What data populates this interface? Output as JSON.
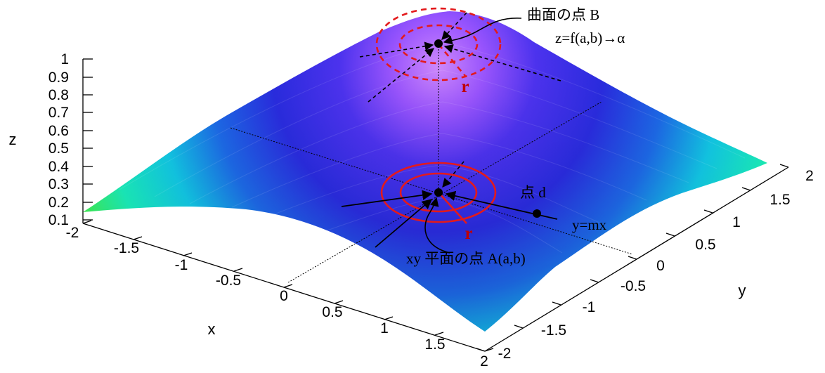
{
  "figure": {
    "axes": {
      "z_label": "z",
      "x_label": "x",
      "y_label": "y",
      "z_ticks": [
        "1",
        "0.9",
        "0.8",
        "0.7",
        "0.6",
        "0.5",
        "0.4",
        "0.3",
        "0.2",
        "0.1"
      ],
      "x_ticks": [
        "-2",
        "-1.5",
        "-1",
        "-0.5",
        "0",
        "0.5",
        "1",
        "1.5",
        "2"
      ],
      "y_ticks": [
        "-2",
        "-1.5",
        "-1",
        "-0.5",
        "0",
        "0.5",
        "1",
        "1.5",
        "2"
      ]
    },
    "annotations": {
      "point_b": "曲面の点 B",
      "limit_expr": "z=f(a,b)→α",
      "point_d": "点 d",
      "line_expr": "y=mx",
      "point_a": "xy 平面の点 A(a,b)",
      "r_upper": "r",
      "r_lower": "r"
    },
    "colors": {
      "circle_red": "#e31a1c",
      "label_red": "#c00000",
      "surface_top": "#c77bff",
      "surface_mid": "#2f2fe8",
      "surface_edge": "#00e6d4",
      "surface_low": "#3cf03c"
    }
  }
}
